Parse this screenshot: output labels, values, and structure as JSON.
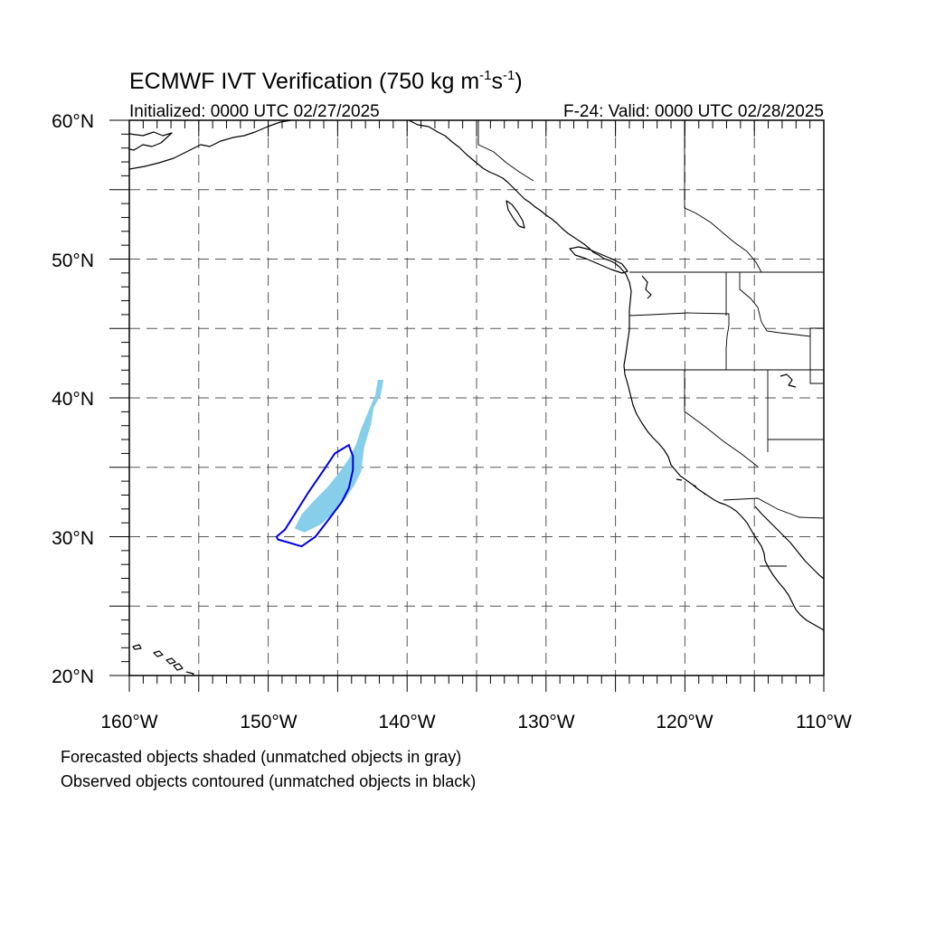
{
  "figure": {
    "title_prefix": "ECMWF IVT Verification (750 kg m",
    "title_exp1": "-1",
    "title_mid": "s",
    "title_exp2": "-1",
    "title_suffix": ")",
    "initialized": "Initialized: 0000 UTC 02/27/2025",
    "valid": "F-24: Valid: 0000 UTC 02/28/2025"
  },
  "map": {
    "lon_range": [
      -160,
      -110
    ],
    "lat_range": [
      20,
      60
    ],
    "lon_tick_labels": [
      "160°W",
      "150°W",
      "140°W",
      "130°W",
      "120°W",
      "110°W"
    ],
    "lat_tick_labels": [
      "20°N",
      "30°N",
      "40°N",
      "50°N",
      "60°N"
    ],
    "gridline_spacing_deg": 5,
    "gridline_style": "dashed",
    "forecast_fill_color": "#87ceeb",
    "observed_contour_color": "#0000dd",
    "coastline_color": "#000000"
  },
  "objects": {
    "forecast_object_points": [
      [
        -141.7,
        41.3
      ],
      [
        -141.9,
        40.2
      ],
      [
        -142.4,
        39.3
      ],
      [
        -142.6,
        38.1
      ],
      [
        -143.1,
        36.4
      ],
      [
        -143.3,
        34.7
      ],
      [
        -143.8,
        33.7
      ],
      [
        -144.4,
        32.8
      ],
      [
        -145.3,
        31.7
      ],
      [
        -146.2,
        30.9
      ],
      [
        -147.4,
        30.3
      ],
      [
        -148.1,
        30.6
      ],
      [
        -147.6,
        31.6
      ],
      [
        -146.7,
        32.6
      ],
      [
        -145.7,
        33.6
      ],
      [
        -144.9,
        34.6
      ],
      [
        -144.2,
        35.6
      ],
      [
        -143.7,
        36.6
      ],
      [
        -143.3,
        37.8
      ],
      [
        -142.8,
        39.0
      ],
      [
        -142.3,
        40.2
      ],
      [
        -142.1,
        41.3
      ]
    ],
    "observed_object_points": [
      [
        -149.3,
        29.8
      ],
      [
        -148.6,
        29.6
      ],
      [
        -147.6,
        29.3
      ],
      [
        -146.6,
        30.0
      ],
      [
        -145.6,
        31.3
      ],
      [
        -144.7,
        32.5
      ],
      [
        -144.2,
        33.5
      ],
      [
        -143.9,
        34.8
      ],
      [
        -143.9,
        35.8
      ],
      [
        -144.2,
        36.6
      ],
      [
        -145.2,
        36.0
      ],
      [
        -146.0,
        34.8
      ],
      [
        -147.1,
        33.2
      ],
      [
        -148.1,
        31.6
      ],
      [
        -148.8,
        30.5
      ],
      [
        -149.4,
        30.0
      ]
    ]
  },
  "captions": {
    "forecast_note": "Forecasted objects shaded (unmatched objects in gray)",
    "observed_note": "Observed objects contoured (unmatched objects in black)"
  }
}
